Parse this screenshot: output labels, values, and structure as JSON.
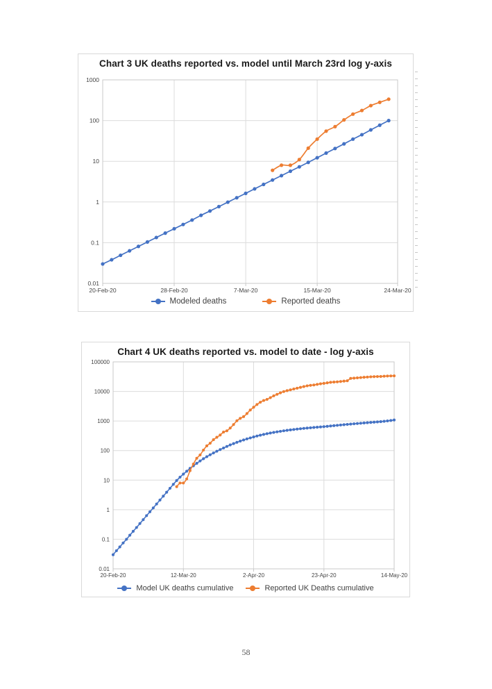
{
  "page": {
    "number": "58"
  },
  "colors": {
    "model_blue": "#4472C4",
    "reported_orange": "#ED7D31",
    "gridline": "#dcdcdc",
    "plot_border": "#c9c9c9",
    "axis_text": "#444444",
    "title_text": "#1a1a1a"
  },
  "chart_data": [
    {
      "type": "line",
      "title": "Chart 3 UK deaths reported vs. model until March 23rd log y-axis",
      "xlabel": "",
      "ylabel": "",
      "y_scale": "log",
      "ylim": [
        0.01,
        1000
      ],
      "y_ticks": [
        "1000",
        "100",
        "10",
        "1",
        "0.1",
        "0.01"
      ],
      "grid": true,
      "legend_position": "bottom",
      "total_days": 33,
      "x_ticks": [
        {
          "day": 0,
          "label": "20-Feb-20"
        },
        {
          "day": 8,
          "label": "28-Feb-20"
        },
        {
          "day": 16,
          "label": "7-Mar-20"
        },
        {
          "day": 24,
          "label": "15-Mar-20"
        },
        {
          "day": 33,
          "label": "24-Mar-20"
        }
      ],
      "series": [
        {
          "name": "Modeled deaths",
          "color": "#4472C4",
          "start_day": 0,
          "values": [
            0.03,
            0.038,
            0.049,
            0.063,
            0.081,
            0.104,
            0.134,
            0.172,
            0.22,
            0.28,
            0.36,
            0.47,
            0.6,
            0.77,
            0.99,
            1.27,
            1.63,
            2.1,
            2.7,
            3.46,
            4.44,
            5.7,
            7.3,
            9.4,
            12.2,
            15.9,
            20.6,
            26.8,
            35,
            45,
            59,
            77,
            100
          ]
        },
        {
          "name": "Reported deaths",
          "color": "#ED7D31",
          "start_day": 19,
          "values": [
            6,
            8,
            8,
            11,
            21,
            35,
            55,
            71,
            104,
            144,
            177,
            233,
            281,
            335
          ]
        }
      ]
    },
    {
      "type": "line",
      "title": "Chart 4 UK deaths reported vs. model to date - log y-axis",
      "xlabel": "",
      "ylabel": "",
      "y_scale": "log",
      "ylim": [
        0.01,
        100000
      ],
      "y_ticks": [
        "100000",
        "10000",
        "1000",
        "100",
        "10",
        "1",
        "0.1",
        "0.01"
      ],
      "grid": true,
      "legend_position": "bottom",
      "total_days": 84,
      "x_ticks": [
        {
          "day": 0,
          "label": "20-Feb-20"
        },
        {
          "day": 21,
          "label": "12-Mar-20"
        },
        {
          "day": 42,
          "label": "2-Apr-20"
        },
        {
          "day": 63,
          "label": "23-Apr-20"
        },
        {
          "day": 84,
          "label": "14-May-20"
        }
      ],
      "series": [
        {
          "name": "Model UK deaths cumulative",
          "color": "#4472C4",
          "start_day": 0,
          "values": [
            0.03,
            0.041,
            0.055,
            0.075,
            0.1,
            0.137,
            0.186,
            0.25,
            0.34,
            0.46,
            0.63,
            0.85,
            1.15,
            1.56,
            2.12,
            2.87,
            3.9,
            5.3,
            7.2,
            9.7,
            12.6,
            16,
            20,
            25,
            30.5,
            37,
            44.5,
            53,
            62,
            72,
            83,
            95,
            108,
            122,
            138,
            155,
            172,
            190,
            209,
            228,
            248,
            268,
            289,
            310,
            331,
            352,
            372,
            392,
            411,
            430,
            448,
            466,
            483,
            500,
            516,
            532,
            547,
            562,
            576,
            590,
            604,
            617,
            630,
            643,
            660,
            678,
            696,
            714,
            732,
            750,
            768,
            786,
            804,
            822,
            840,
            858,
            876,
            894,
            912,
            930,
            950,
            975,
            1005,
            1040,
            1080
          ]
        },
        {
          "name": "Reported UK Deaths cumulative",
          "color": "#ED7D31",
          "start_day": 19,
          "values": [
            6,
            8,
            8,
            11,
            21,
            35,
            55,
            71,
            104,
            144,
            177,
            233,
            281,
            335,
            422,
            465,
            578,
            759,
            1019,
            1228,
            1408,
            1789,
            2352,
            2921,
            3605,
            4313,
            4934,
            5373,
            6159,
            7097,
            7978,
            8958,
            9875,
            10612,
            11329,
            12107,
            12868,
            13729,
            14576,
            15464,
            16060,
            16509,
            17337,
            18100,
            18738,
            19506,
            20319,
            20732,
            21092,
            21678,
            22329,
            22954,
            27510,
            28131,
            28734,
            29427,
            30076,
            30615,
            31241,
            31587,
            31855,
            32065,
            32692,
            33186,
            33470,
            33614
          ]
        }
      ]
    }
  ]
}
